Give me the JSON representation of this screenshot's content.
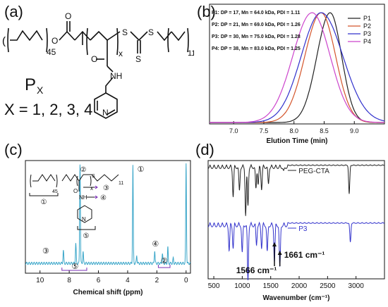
{
  "panels": {
    "a": {
      "label": "(a)",
      "repeat_peg": "45",
      "repeat_x": "x",
      "repeat_dodecyl": "11",
      "s1": "S",
      "s2": "S",
      "s3": "S",
      "o_ester": "O",
      "o_amide": "O",
      "o_ether": "O",
      "nh": "NH",
      "n_pyr": "N",
      "polymer_name": "P",
      "polymer_sub": "X",
      "x_values": "X = 1, 2, 3, 4"
    },
    "b": {
      "label": "(b)"
    },
    "c": {
      "label": "(c)",
      "marks": [
        "①",
        "②",
        "③",
        "④",
        "⑤"
      ],
      "inset": {
        "repeat_peg": "45",
        "repeat_x": "x",
        "repeat_dodecyl": "11",
        "nh": "NH",
        "n_pyr": "N",
        "o": "O",
        "s": "S"
      }
    },
    "d": {
      "label": "(d)"
    }
  },
  "chart_data": [
    {
      "type": "line",
      "panel": "b",
      "xlabel": "Elution Time (min)",
      "ylabel": "",
      "xlim": [
        6.6,
        9.5
      ],
      "xticks": [
        "7.0",
        "7.5",
        "8.0",
        "8.5",
        "9.0"
      ],
      "legend_placement": "top-right",
      "annotations": [
        "P1: DP = 17, Mn = 64.0 kDa, PDI = 1.11",
        "P2: DP = 21, Mn = 69.0 kDa, PDI = 1.26",
        "P3: DP = 30, Mn = 75.0 kDa, PDI = 1.28",
        "P4: DP = 38, Mn = 83.0 kDa, PDI = 1.25"
      ],
      "series": [
        {
          "name": "P1",
          "color": "#222222",
          "peak": 8.6,
          "sigma_left": 0.22,
          "sigma_right": 0.19
        },
        {
          "name": "P2",
          "color": "#d4552b",
          "peak": 8.45,
          "sigma_left": 0.27,
          "sigma_right": 0.24
        },
        {
          "name": "P3",
          "color": "#3030cc",
          "peak": 8.45,
          "sigma_left": 0.33,
          "sigma_right": 0.36
        },
        {
          "name": "P4",
          "color": "#cc44cc",
          "peak": 8.3,
          "sigma_left": 0.32,
          "sigma_right": 0.3
        }
      ]
    },
    {
      "type": "line",
      "panel": "c",
      "xlabel": "Chemical shift (ppm)",
      "ylabel": "",
      "xlim": [
        11,
        -0.3
      ],
      "xticks": [
        "10",
        "8",
        "6",
        "4",
        "2",
        "0"
      ],
      "peak_labels": [
        {
          "mark": "③",
          "ppm": 9.6
        },
        {
          "mark": "①",
          "ppm": 3.6
        },
        {
          "mark": "④",
          "ppm": 2.1
        },
        {
          "mark": "②",
          "ppm": 1.5
        },
        {
          "mark": "⑤",
          "ppm": 7.6
        }
      ],
      "peaks": [
        {
          "ppm": 8.4,
          "height": 0.13
        },
        {
          "ppm": 7.55,
          "height": 0.2
        },
        {
          "ppm": 7.26,
          "height": 1.0
        },
        {
          "ppm": 7.05,
          "height": 0.12
        },
        {
          "ppm": 3.64,
          "height": 0.98
        },
        {
          "ppm": 3.38,
          "height": 0.08
        },
        {
          "ppm": 2.15,
          "height": 0.13
        },
        {
          "ppm": 1.62,
          "height": 0.1
        },
        {
          "ppm": 1.25,
          "height": 0.16
        },
        {
          "ppm": 0.88,
          "height": 0.05
        },
        {
          "ppm": 0.0,
          "height": 1.0
        }
      ],
      "color": "#3aa6c9"
    },
    {
      "type": "line",
      "panel": "d",
      "xlabel": "Wavenumber (cm⁻¹)",
      "ylabel": "",
      "xlim": [
        400,
        3500
      ],
      "xticks": [
        "500",
        "1000",
        "1500",
        "2000",
        "2500",
        "3000"
      ],
      "series": [
        {
          "name": "PEG-CTA",
          "color": "#222222",
          "bands": [
            [
              840,
              0.6
            ],
            [
              950,
              0.5
            ],
            [
              1060,
              1.0
            ],
            [
              1100,
              0.8
            ],
            [
              1240,
              0.45
            ],
            [
              1280,
              0.35
            ],
            [
              1340,
              0.45
            ],
            [
              1460,
              0.35
            ],
            [
              1730,
              0.1
            ],
            [
              2880,
              0.6
            ]
          ]
        },
        {
          "name": "P3",
          "color": "#3333cc",
          "bands": [
            [
              770,
              0.45
            ],
            [
              840,
              0.4
            ],
            [
              1000,
              0.5
            ],
            [
              1100,
              1.0
            ],
            [
              1250,
              0.35
            ],
            [
              1340,
              0.4
            ],
            [
              1440,
              0.5
            ],
            [
              1566,
              0.65
            ],
            [
              1661,
              0.8
            ],
            [
              2900,
              0.35
            ]
          ]
        }
      ],
      "annotations": [
        {
          "text": "1661 cm⁻¹",
          "x": 1661
        },
        {
          "text": "1566 cm⁻¹",
          "x": 1566
        }
      ]
    }
  ]
}
